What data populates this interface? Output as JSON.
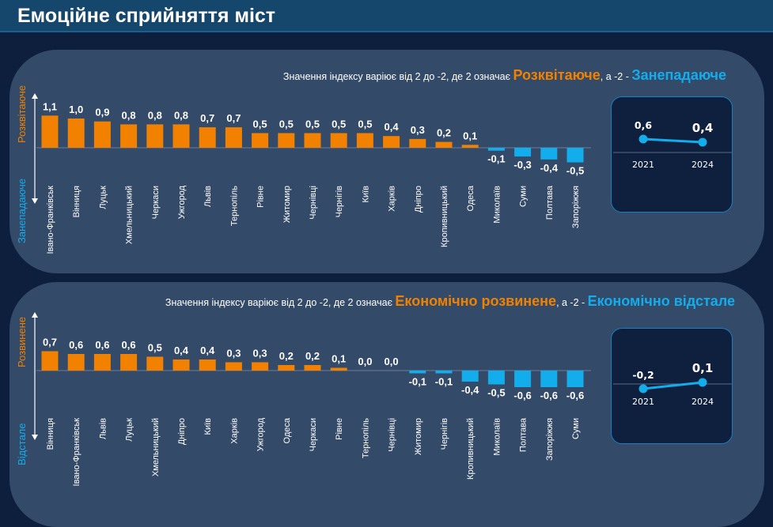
{
  "title": "Емоційне сприйняття міст",
  "colors": {
    "positive": "#f28100",
    "negative": "#13adec",
    "background": "#0e1f3d",
    "panel": "#344a69"
  },
  "chart_data": [
    {
      "type": "bar",
      "subtitle": {
        "prefix": "Значення індексу варіює від 2 до -2, де 2 означає ",
        "positive": "Розквітаюче",
        "middle": ", а -2 - ",
        "negative": "Занепадаюче"
      },
      "axis_positive_label": "Розквітаюче",
      "axis_negative_label": "Занепадаюче",
      "categories": [
        "Івано-Франківськ",
        "Вінниця",
        "Луцьк",
        "Хмельницький",
        "Черкаси",
        "Ужгород",
        "Львів",
        "Тернопіль",
        "Рівне",
        "Житомир",
        "Чернівці",
        "Чернігів",
        "Київ",
        "Харків",
        "Дніпро",
        "Кропивницький",
        "Одеса",
        "Миколаїв",
        "Суми",
        "Полтава",
        "Запоріжжя"
      ],
      "values": [
        1.1,
        1.0,
        0.9,
        0.8,
        0.8,
        0.8,
        0.7,
        0.7,
        0.5,
        0.5,
        0.5,
        0.5,
        0.5,
        0.4,
        0.3,
        0.2,
        0.1,
        -0.1,
        -0.3,
        -0.4,
        -0.5
      ],
      "labels": [
        "1,1",
        "1,0",
        "0,9",
        "0,8",
        "0,8",
        "0,8",
        "0,7",
        "0,7",
        "0,5",
        "0,5",
        "0,5",
        "0,5",
        "0,5",
        "0,4",
        "0,3",
        "0,2",
        "0,1",
        "-0,1",
        "-0,3",
        "-0,4",
        "-0,5"
      ],
      "trend": {
        "type": "line",
        "x": [
          "2021",
          "2024"
        ],
        "values": [
          0.6,
          0.4
        ],
        "labels": [
          "0,6",
          "0,4"
        ]
      }
    },
    {
      "type": "bar",
      "subtitle": {
        "prefix": "Значення індексу варіює від 2 до -2, де 2 означає ",
        "positive": "Економічно розвинене",
        "middle": ", а -2 - ",
        "negative": "Економічно відстале"
      },
      "axis_positive_label": "Розвинене",
      "axis_negative_label": "Відстале",
      "categories": [
        "Вінниця",
        "Івано-Франківськ",
        "Львів",
        "Луцьк",
        "Хмельницький",
        "Дніпро",
        "Київ",
        "Харків",
        "Ужгород",
        "Одеса",
        "Черкаси",
        "Рівне",
        "Тернопіль",
        "Чернівці",
        "Житомир",
        "Чернігів",
        "Кропивницький",
        "Миколаїв",
        "Полтава",
        "Запоріжжя",
        "Суми"
      ],
      "values": [
        0.7,
        0.6,
        0.6,
        0.6,
        0.5,
        0.4,
        0.4,
        0.3,
        0.3,
        0.2,
        0.2,
        0.1,
        0.0,
        0.0,
        -0.1,
        -0.1,
        -0.4,
        -0.5,
        -0.6,
        -0.6,
        -0.6
      ],
      "labels": [
        "0,7",
        "0,6",
        "0,6",
        "0,6",
        "0,5",
        "0,4",
        "0,4",
        "0,3",
        "0,3",
        "0,2",
        "0,2",
        "0,1",
        "0,0",
        "0,0",
        "-0,1",
        "-0,1",
        "-0,4",
        "-0,5",
        "-0,6",
        "-0,6",
        "-0,6"
      ],
      "trend": {
        "type": "line",
        "x": [
          "2021",
          "2024"
        ],
        "values": [
          -0.2,
          0.1
        ],
        "labels": [
          "-0,2",
          "0,1"
        ]
      }
    }
  ]
}
